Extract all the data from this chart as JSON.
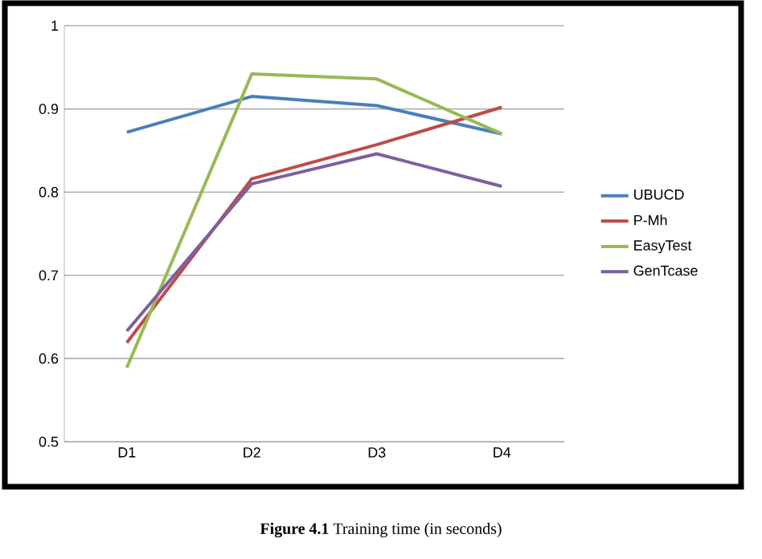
{
  "chart_data": {
    "type": "line",
    "categories": [
      "D1",
      "D2",
      "D3",
      "D4"
    ],
    "series": [
      {
        "name": "UBUCD",
        "color": "#4a7ebb",
        "values": [
          0.872,
          0.915,
          0.904,
          0.87
        ]
      },
      {
        "name": "P-Mh",
        "color": "#be4b48",
        "values": [
          0.619,
          0.816,
          0.857,
          0.902
        ]
      },
      {
        "name": "EasyTest",
        "color": "#98b954",
        "values": [
          0.589,
          0.942,
          0.936,
          0.87
        ]
      },
      {
        "name": "GenTcase",
        "color": "#7d60a0",
        "values": [
          0.633,
          0.81,
          0.846,
          0.807
        ]
      }
    ],
    "ylim": [
      0.5,
      1
    ],
    "yticks": [
      0.5,
      0.6,
      0.7,
      0.8,
      0.9,
      1
    ],
    "grid": "y",
    "legend": "right",
    "annotations": [
      "**Figure 4.1** Training time (in seconds)"
    ]
  }
}
